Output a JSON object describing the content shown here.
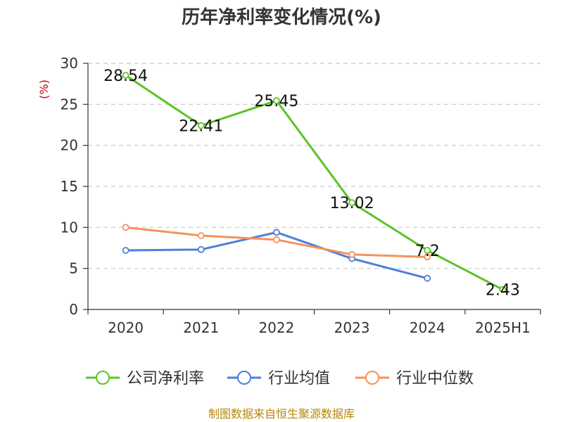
{
  "chart_data": {
    "type": "line",
    "title": "历年净利率变化情况(%)",
    "ylabel": "(%)",
    "xlabel": "",
    "categories": [
      "2020",
      "2021",
      "2022",
      "2023",
      "2024",
      "2025H1"
    ],
    "ylim": [
      0,
      30
    ],
    "yticks": [
      0,
      5,
      10,
      15,
      20,
      25,
      30
    ],
    "grid": true,
    "legend_position": "bottom",
    "series": [
      {
        "name": "公司净利率",
        "color": "#5cc228",
        "values": [
          28.54,
          22.41,
          25.45,
          13.02,
          7.2,
          2.43
        ],
        "labels": [
          "28.54",
          "22.41",
          "25.45",
          "13.02",
          "7.2",
          "2.43"
        ]
      },
      {
        "name": "行业均值",
        "color": "#4f7fd9",
        "values": [
          7.2,
          7.3,
          9.4,
          6.2,
          3.8,
          null
        ]
      },
      {
        "name": "行业中位数",
        "color": "#f5925c",
        "values": [
          10.0,
          9.0,
          8.5,
          6.7,
          6.4,
          null
        ]
      }
    ]
  },
  "source": "制图数据来自恒生聚源数据库"
}
